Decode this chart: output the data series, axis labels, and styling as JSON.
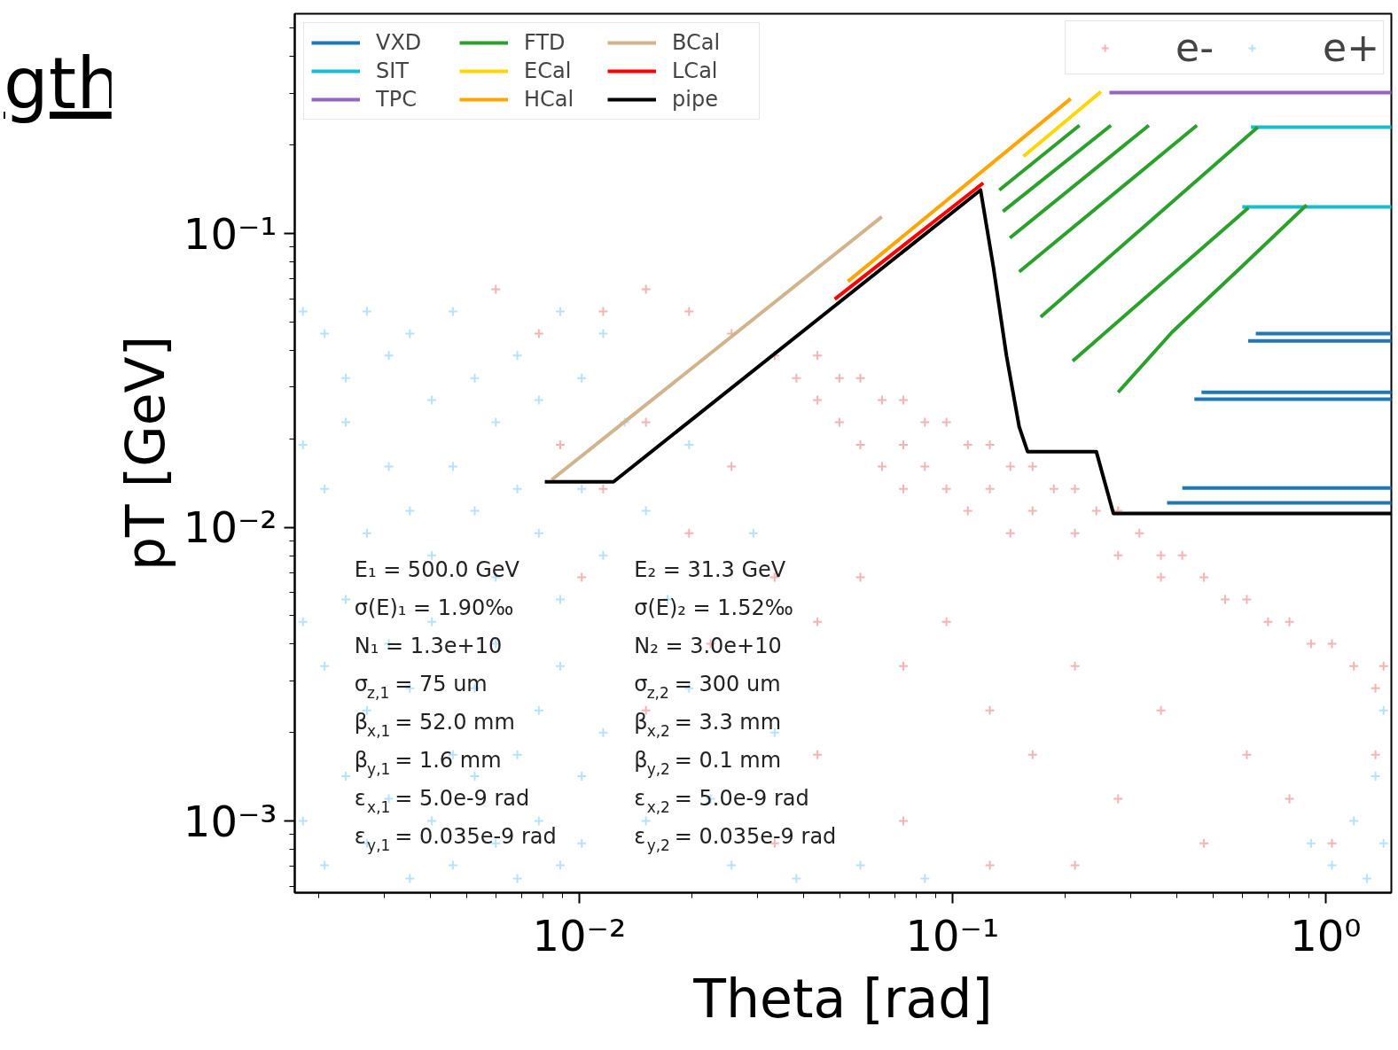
{
  "chart_data": {
    "type": "scatter",
    "title": "gth",
    "xlabel": "Theta [rad]",
    "ylabel": "pT [GeV]",
    "log": "xy",
    "legend": "top",
    "xlim": [
      0.00173,
      1.5
    ],
    "ylim": [
      0.00057,
      0.56
    ],
    "xticks": [
      {
        "value": 0.01,
        "label": "10⁻²"
      },
      {
        "value": 0.1,
        "label": "10⁻¹"
      },
      {
        "value": 1,
        "label": "10⁰"
      }
    ],
    "yticks": [
      {
        "value": 0.001,
        "label": "10⁻³"
      },
      {
        "value": 0.01,
        "label": "10⁻²"
      },
      {
        "value": 0.1,
        "label": "10⁻¹"
      }
    ],
    "annotations": [
      "E₁ = 500.0 GeV",
      "σ(E)₁ = 1.90‰",
      "N₁ = 1.3e+10",
      "σ$_{z,1}$ = 75 um",
      "β$_{x,1}$ = 52.0 mm",
      "β$_{y,1}$ = 1.6 mm",
      "ε$_{x,1}$ = 5.0e-9 rad",
      "ε$_{y,1}$ = 0.035e-9 rad",
      "E₂ = 31.3 GeV",
      "σ(E)₂ = 1.52‰",
      "N₂ = 3.0e+10",
      "σ$_{z,2}$ = 300 um",
      "β$_{x,2}$ = 3.3 mm",
      "β$_{y,2}$ = 0.1 mm",
      "ε$_{x,2}$ = 5.0e-9 rad",
      "ε$_{y,2}$ = 0.035e-9 rad"
    ],
    "series": [
      {
        "name": "e-",
        "type": "scatter",
        "marker": "cross",
        "color": "#f08080",
        "x": [
          0.0334,
          0.0382,
          0.0435,
          0.0435,
          0.0498,
          0.0498,
          0.0567,
          0.0567,
          0.0648,
          0.0648,
          0.0739,
          0.0739,
          0.0739,
          0.0844,
          0.0844,
          0.0964,
          0.0964,
          0.11,
          0.11,
          0.126,
          0.126,
          0.143,
          0.143,
          0.164,
          0.164,
          0.187,
          0.213,
          0.213,
          0.243,
          0.278,
          0.278,
          0.317,
          0.362,
          0.362,
          0.413,
          0.472,
          0.538,
          0.615,
          0.701,
          0.8,
          0.914,
          1.04,
          1.19,
          1.36,
          1.43,
          0.00598,
          0.0078,
          0.0116,
          0.0151,
          0.0197,
          0.0256,
          0.0089,
          0.0116,
          0.0151,
          0.0197,
          0.0256,
          0.0334,
          0.0435,
          0.0567,
          0.0739,
          0.0964,
          0.126,
          0.164,
          0.213,
          0.278,
          0.362,
          0.472,
          0.615,
          0.8,
          1.04,
          1.36,
          0.0225,
          0.0151,
          0.0435,
          0.0739,
          0.0334,
          0.01016,
          0.126,
          0.213
        ],
        "values": [
          0.0384,
          0.0322,
          0.0384,
          0.0271,
          0.0322,
          0.0228,
          0.0322,
          0.0191,
          0.0271,
          0.0161,
          0.0271,
          0.0191,
          0.0135,
          0.0228,
          0.0161,
          0.0228,
          0.0135,
          0.0191,
          0.01137,
          0.0191,
          0.0135,
          0.0161,
          0.00955,
          0.0161,
          0.01137,
          0.0135,
          0.0135,
          0.00955,
          0.01137,
          0.01137,
          0.00803,
          0.00955,
          0.00803,
          0.00676,
          0.00803,
          0.00676,
          0.00568,
          0.00568,
          0.00477,
          0.00477,
          0.00401,
          0.00401,
          0.00337,
          0.00283,
          0.00337,
          0.0646,
          0.0456,
          0.0543,
          0.0646,
          0.0543,
          0.0456,
          0.0191,
          0.0135,
          0.0228,
          0.00955,
          0.0161,
          0.00676,
          0.00477,
          0.00676,
          0.00337,
          0.00477,
          0.00238,
          0.00168,
          0.00337,
          0.00119,
          0.00238,
          0.00084,
          0.00168,
          0.00119,
          0.00084,
          0.00168,
          0.00401,
          0.00238,
          0.00168,
          0.001,
          0.00084,
          0.00676,
          0.000707,
          0.000707
        ]
      },
      {
        "name": "e+",
        "type": "scatter",
        "marker": "cross",
        "color": "#87cefa",
        "x": [
          0.00182,
          0.00208,
          0.00237,
          0.0027,
          0.00309,
          0.00352,
          0.00403,
          0.00459,
          0.00525,
          0.00598,
          0.00683,
          0.0078,
          0.0089,
          0.01016,
          0.0116,
          0.00182,
          0.00208,
          0.00237,
          0.0027,
          0.00309,
          0.00352,
          0.00403,
          0.00459,
          0.00525,
          0.00598,
          0.00683,
          0.0078,
          0.0089,
          0.01016,
          0.0116,
          0.00182,
          0.00208,
          0.00237,
          0.0027,
          0.00309,
          0.00352,
          0.00403,
          0.00459,
          0.00525,
          0.00598,
          0.00683,
          0.0078,
          0.0089,
          0.01016,
          0.0116,
          0.00182,
          0.00208,
          0.00237,
          0.0027,
          0.00309,
          0.00352,
          0.00403,
          0.00459,
          0.00525,
          0.00598,
          0.00683,
          0.0078,
          0.0089,
          0.01016,
          0.01324,
          0.0151,
          0.01725,
          0.0197,
          0.0225,
          0.0256,
          0.0151,
          0.0197,
          0.0293,
          0.0334,
          0.0382,
          0.0567,
          0.0844,
          1.19,
          1.36,
          1.43,
          1.04,
          1.29,
          1.43,
          0.914
        ],
        "values": [
          0.0543,
          0.0456,
          0.0322,
          0.0543,
          0.0384,
          0.0456,
          0.0271,
          0.0543,
          0.0322,
          0.0228,
          0.0384,
          0.0271,
          0.0543,
          0.0322,
          0.0456,
          0.0191,
          0.0135,
          0.0228,
          0.00955,
          0.0161,
          0.01137,
          0.00803,
          0.0161,
          0.01137,
          0.00676,
          0.0135,
          0.00955,
          0.00568,
          0.0135,
          0.00803,
          0.00477,
          0.00337,
          0.00568,
          0.00238,
          0.00401,
          0.00283,
          0.00477,
          0.00168,
          0.00283,
          0.00401,
          0.00168,
          0.00238,
          0.00337,
          0.00142,
          0.002,
          0.001,
          0.000707,
          0.00142,
          0.00084,
          0.00119,
          0.000637,
          0.001,
          0.000707,
          0.00142,
          0.00084,
          0.000637,
          0.001,
          0.000707,
          0.00084,
          0.0228,
          0.01137,
          0.00568,
          0.00283,
          0.00119,
          0.000707,
          0.001,
          0.0191,
          0.00955,
          0.002,
          0.000637,
          0.000707,
          0.000637,
          0.001,
          0.00142,
          0.00084,
          0.000707,
          0.000637,
          0.00238,
          0.00084
        ]
      },
      {
        "name": "VXD",
        "type": "line",
        "color": "#1f77b4",
        "x": [
          0.65,
          1.5
        ],
        "values": [
          0.0456,
          0.0456
        ]
      },
      {
        "type": "line",
        "color": "#1f77b4",
        "x": [
          0.62,
          1.5
        ],
        "values": [
          0.0431,
          0.0431
        ]
      },
      {
        "type": "line",
        "color": "#1f77b4",
        "x": [
          0.465,
          1.5
        ],
        "values": [
          0.0288,
          0.0288
        ]
      },
      {
        "type": "line",
        "color": "#1f77b4",
        "x": [
          0.445,
          1.5
        ],
        "values": [
          0.0273,
          0.0273
        ]
      },
      {
        "type": "line",
        "color": "#1f77b4",
        "x": [
          0.413,
          1.5
        ],
        "values": [
          0.01361,
          0.01361
        ]
      },
      {
        "type": "line",
        "color": "#1f77b4",
        "x": [
          0.376,
          1.5
        ],
        "values": [
          0.0121,
          0.0121
        ]
      },
      {
        "name": "SIT",
        "type": "line",
        "color": "#17becf",
        "x": [
          0.631,
          1.5
        ],
        "values": [
          0.23,
          0.23
        ]
      },
      {
        "type": "line",
        "color": "#17becf",
        "x": [
          0.598,
          1.5
        ],
        "values": [
          0.1233,
          0.1233
        ]
      },
      {
        "name": "TPC",
        "type": "line",
        "color": "#9467bd",
        "x": [
          0.2635,
          1.5
        ],
        "values": [
          0.302,
          0.302
        ]
      },
      {
        "name": "FTD",
        "type": "line",
        "color": "#2ca02c",
        "x": [
          0.1336,
          0.219
        ],
        "values": [
          0.1406,
          0.2334
        ]
      },
      {
        "type": "line",
        "color": "#2ca02c",
        "x": [
          0.1366,
          0.266
        ],
        "values": [
          0.1189,
          0.2334
        ]
      },
      {
        "type": "line",
        "color": "#2ca02c",
        "x": [
          0.1426,
          0.336
        ],
        "values": [
          0.0966,
          0.2334
        ]
      },
      {
        "type": "line",
        "color": "#2ca02c",
        "x": [
          0.151,
          0.452
        ],
        "values": [
          0.0741,
          0.2334
        ]
      },
      {
        "type": "line",
        "color": "#2ca02c",
        "x": [
          0.1724,
          0.658
        ],
        "values": [
          0.052,
          0.23
        ]
      },
      {
        "type": "line",
        "color": "#2ca02c",
        "x": [
          0.21,
          0.621
        ],
        "values": [
          0.0368,
          0.1223
        ]
      },
      {
        "type": "line",
        "color": "#2ca02c",
        "x": [
          0.278,
          0.388,
          0.583,
          0.889
        ],
        "values": [
          0.0288,
          0.0462,
          0.0751,
          0.125
        ]
      },
      {
        "name": "ECal",
        "type": "line",
        "color": "#ffd700",
        "x": [
          0.155,
          0.25
        ],
        "values": [
          0.183,
          0.304
        ]
      },
      {
        "name": "HCal",
        "type": "line",
        "color": "#ffa500",
        "x": [
          0.0525,
          0.2075
        ],
        "values": [
          0.0687,
          0.2877
        ]
      },
      {
        "name": "BCal",
        "type": "line",
        "color": "#d2b48c",
        "x": [
          0.00844,
          0.0647
        ],
        "values": [
          0.0145,
          0.114
        ]
      },
      {
        "name": "LCal",
        "type": "line",
        "color": "#ff0000",
        "x": [
          0.0484,
          0.121
        ],
        "values": [
          0.0598,
          0.1486
        ]
      },
      {
        "name": "pipe",
        "type": "line",
        "color": "#000000",
        "x": [
          0.00809,
          0.01236,
          0.119,
          0.1288,
          0.1396,
          0.151,
          0.159,
          0.243,
          0.27,
          1.5
        ],
        "values": [
          0.01428,
          0.01428,
          0.1406,
          0.0768,
          0.0384,
          0.022,
          0.0181,
          0.0181,
          0.01114,
          0.01114
        ]
      }
    ]
  }
}
